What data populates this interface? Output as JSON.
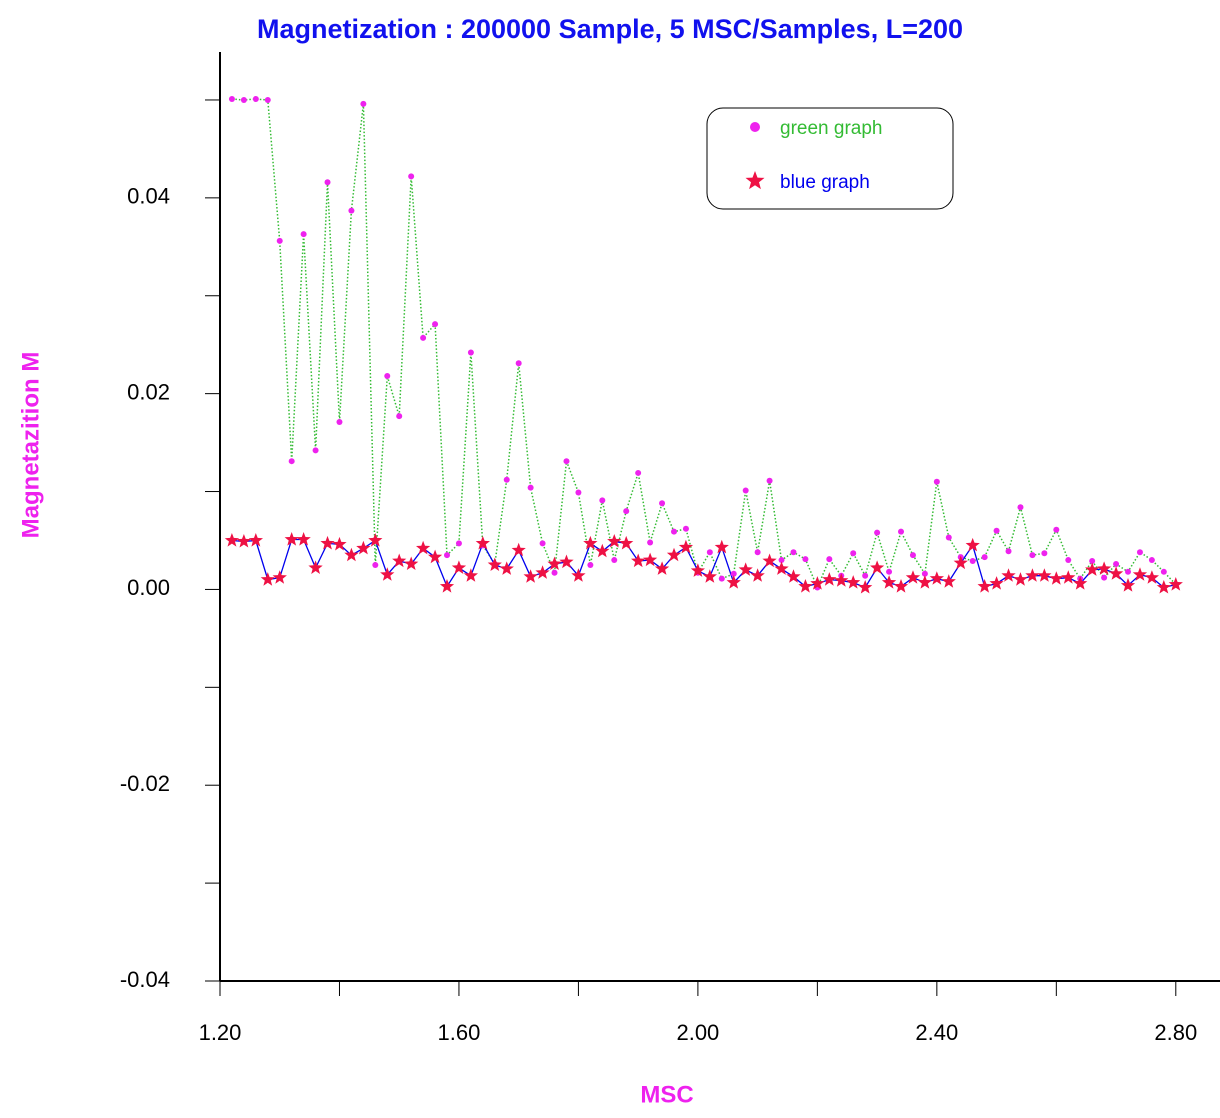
{
  "chart_data": {
    "type": "line",
    "title": "Magnetization : 200000 Sample, 5 MSC/Samples, L=200",
    "x_label": "MSC",
    "y_label": "Magnetazition M",
    "xlim": [
      1.2,
      2.874
    ],
    "ylim": [
      -0.04,
      0.0549
    ],
    "xticks": [
      {
        "value": 1.2,
        "label": "1.20"
      },
      {
        "value": 1.6,
        "label": "1.60"
      },
      {
        "value": 2.0,
        "label": "2.00"
      },
      {
        "value": 2.4,
        "label": "2.40"
      },
      {
        "value": 2.8,
        "label": "2.80"
      }
    ],
    "xminorticks": [
      1.4,
      1.8,
      2.2,
      2.6
    ],
    "yticks": [
      {
        "value": -0.04,
        "label": "-0.04"
      },
      {
        "value": -0.02,
        "label": "-0.02"
      },
      {
        "value": 0,
        "label": "0.00"
      },
      {
        "value": 0.02,
        "label": "0.02"
      },
      {
        "value": 0.04,
        "label": "0.04"
      }
    ],
    "yminorticks": [
      -0.03,
      -0.01,
      0.01,
      0.03,
      0.05
    ],
    "grid": false,
    "legend_position": "upper right",
    "x": [
      1.22,
      1.24,
      1.26,
      1.28,
      1.3,
      1.32,
      1.34,
      1.36,
      1.38,
      1.4,
      1.42,
      1.44,
      1.46,
      1.48,
      1.5,
      1.52,
      1.54,
      1.56,
      1.58,
      1.6,
      1.62,
      1.64,
      1.66,
      1.68,
      1.7,
      1.72,
      1.74,
      1.76,
      1.78,
      1.8,
      1.82,
      1.84,
      1.86,
      1.88,
      1.9,
      1.92,
      1.94,
      1.96,
      1.98,
      2.0,
      2.02,
      2.04,
      2.06,
      2.08,
      2.1,
      2.12,
      2.14,
      2.16,
      2.18,
      2.2,
      2.22,
      2.24,
      2.26,
      2.28,
      2.3,
      2.32,
      2.34,
      2.36,
      2.38,
      2.4,
      2.42,
      2.44,
      2.46,
      2.48,
      2.5,
      2.52,
      2.54,
      2.56,
      2.58,
      2.6,
      2.62,
      2.64,
      2.66,
      2.68,
      2.7,
      2.72,
      2.74,
      2.76,
      2.78,
      2.8
    ],
    "series": [
      {
        "name": "green graph",
        "color": "#33bb33",
        "line_style": "dotted",
        "marker": "circle",
        "marker_color": "#ee22ee",
        "values": [
          0.0501,
          0.05,
          0.0501,
          0.05,
          0.0356,
          0.0131,
          0.0363,
          0.0142,
          0.0416,
          0.0171,
          0.0387,
          0.0496,
          0.0025,
          0.0218,
          0.0177,
          0.0422,
          0.0257,
          0.0271,
          0.0035,
          0.0047,
          0.0242,
          0.0045,
          0.0026,
          0.0112,
          0.0231,
          0.0104,
          0.0047,
          0.0017,
          0.0131,
          0.0099,
          0.0025,
          0.0091,
          0.003,
          0.008,
          0.0119,
          0.0048,
          0.0088,
          0.0059,
          0.0062,
          0.0017,
          0.0038,
          0.0011,
          0.0016,
          0.0101,
          0.0038,
          0.0111,
          0.003,
          0.0038,
          0.0031,
          0.0002,
          0.0031,
          0.0014,
          0.0037,
          0.0014,
          0.0058,
          0.0018,
          0.0059,
          0.0035,
          0.0016,
          0.011,
          0.0053,
          0.0033,
          0.0029,
          0.0033,
          0.006,
          0.0039,
          0.0084,
          0.0035,
          0.0037,
          0.0061,
          0.003,
          0.0011,
          0.0029,
          0.0012,
          0.0026,
          0.0018,
          0.0038,
          0.003,
          0.0018,
          0.0005
        ]
      },
      {
        "name": "blue graph",
        "color": "#0000ee",
        "line_style": "solid",
        "marker": "star",
        "marker_color": "#ee1144",
        "values": [
          0.005,
          0.0049,
          0.005,
          0.001,
          0.0012,
          0.0051,
          0.0051,
          0.0022,
          0.0047,
          0.0046,
          0.0035,
          0.0042,
          0.005,
          0.0015,
          0.0029,
          0.0026,
          0.0042,
          0.0033,
          0.0003,
          0.0022,
          0.0014,
          0.0047,
          0.0025,
          0.0021,
          0.004,
          0.0013,
          0.0017,
          0.0026,
          0.0028,
          0.0014,
          0.0047,
          0.0039,
          0.0049,
          0.0047,
          0.0029,
          0.003,
          0.0021,
          0.0035,
          0.0043,
          0.0019,
          0.0013,
          0.0043,
          0.0007,
          0.002,
          0.0014,
          0.0029,
          0.0021,
          0.0013,
          0.0003,
          0.0006,
          0.001,
          0.0009,
          0.0007,
          0.0002,
          0.0022,
          0.0007,
          0.0003,
          0.0012,
          0.0007,
          0.0011,
          0.0008,
          0.0027,
          0.0045,
          0.0003,
          0.0006,
          0.0014,
          0.001,
          0.0014,
          0.0014,
          0.0011,
          0.0012,
          0.0006,
          0.002,
          0.0021,
          0.0016,
          0.0004,
          0.0015,
          0.0012,
          0.0002,
          0.0005
        ]
      }
    ]
  }
}
